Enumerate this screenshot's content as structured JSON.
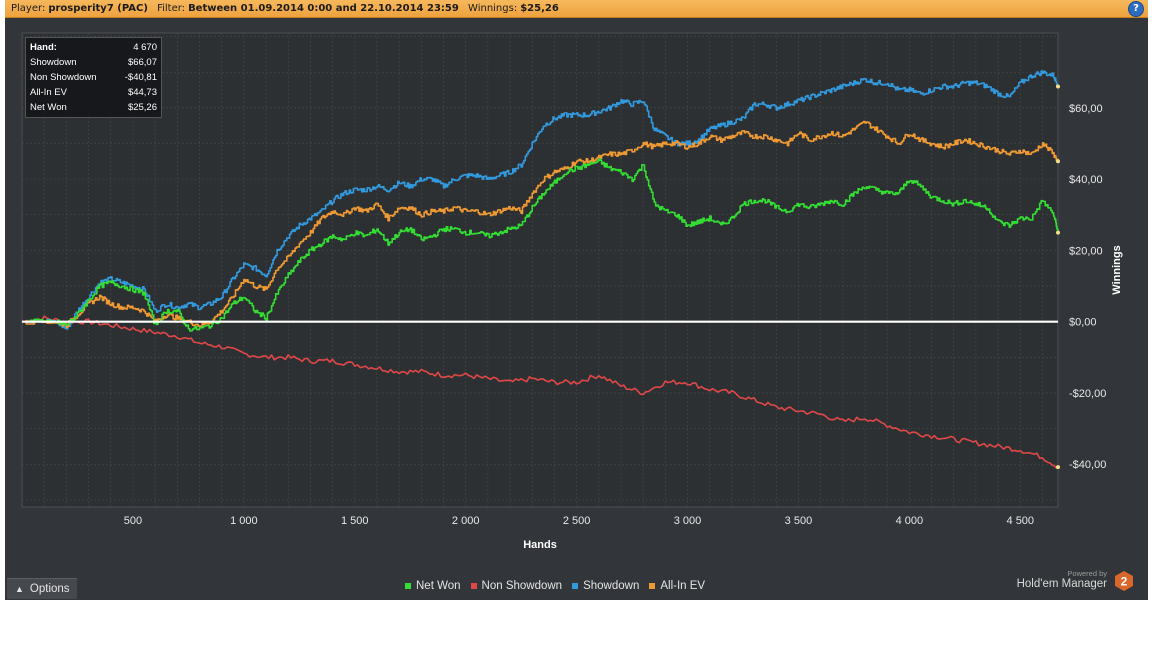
{
  "header": {
    "player_label": "Player:",
    "player_value": "prosperity7 (PAC)",
    "filter_label": "Filter:",
    "filter_value": "Between 01.09.2014 0:00 and 22.10.2014 23:59",
    "winnings_label": "Winnings:",
    "winnings_value": "$25,26",
    "help_icon": "?"
  },
  "stats": [
    {
      "key": "Hand:",
      "value": "4 670"
    },
    {
      "key": "Showdown",
      "value": "$66,07"
    },
    {
      "key": "Non Showdown",
      "value": "-$40,81"
    },
    {
      "key": "All-In EV",
      "value": "$44,73"
    },
    {
      "key": "Net Won",
      "value": "$25,26"
    }
  ],
  "footer": {
    "options_label": "Options",
    "powered_by": "Powered by",
    "brand_name": "Hold'em Manager",
    "brand_badge": "2"
  },
  "colors": {
    "net_won": "#33dd33",
    "non_showdown": "#e04848",
    "showdown": "#3399dd",
    "allin_ev": "#ee9933",
    "zero_line": "#ffffff",
    "background": "#323539",
    "grid": "#45484d"
  },
  "chart_data": {
    "type": "line",
    "xlabel": "Hands",
    "ylabel": "Winnings",
    "xlim": [
      0,
      4670
    ],
    "ylim": [
      -52,
      81
    ],
    "x_ticks": [
      500,
      1000,
      1500,
      2000,
      2500,
      3000,
      3500,
      4000,
      4500
    ],
    "x_tick_labels": [
      "500",
      "1 000",
      "1 500",
      "2 000",
      "2 500",
      "3 000",
      "3 500",
      "4 000",
      "4 500"
    ],
    "y_ticks": [
      60,
      40,
      20,
      0,
      -20,
      -40
    ],
    "y_tick_labels": [
      "$60,00",
      "$40,00",
      "$20,00",
      "$0,00",
      "-$20,00",
      "-$40,00"
    ],
    "grid": true,
    "legend_position": "bottom-center",
    "series": [
      {
        "name": "Net Won",
        "color_key": "net_won",
        "x": [
          0,
          150,
          200,
          250,
          300,
          350,
          400,
          450,
          500,
          550,
          600,
          650,
          700,
          750,
          800,
          850,
          900,
          950,
          1000,
          1050,
          1100,
          1150,
          1200,
          1250,
          1300,
          1350,
          1400,
          1450,
          1500,
          1550,
          1600,
          1650,
          1700,
          1750,
          1800,
          1850,
          1900,
          1950,
          2000,
          2050,
          2100,
          2150,
          2200,
          2250,
          2300,
          2350,
          2400,
          2450,
          2500,
          2550,
          2600,
          2650,
          2700,
          2750,
          2800,
          2850,
          2900,
          2950,
          3000,
          3050,
          3100,
          3150,
          3200,
          3250,
          3300,
          3350,
          3400,
          3450,
          3500,
          3550,
          3600,
          3650,
          3700,
          3750,
          3800,
          3850,
          3900,
          3950,
          4000,
          4050,
          4100,
          4150,
          4200,
          4250,
          4300,
          4350,
          4400,
          4450,
          4500,
          4550,
          4600,
          4650,
          4670
        ],
        "y": [
          0,
          0,
          -1,
          2,
          6,
          10,
          11,
          10,
          9,
          8,
          -1,
          3,
          3,
          -2,
          -2,
          -1,
          1,
          5,
          7,
          3,
          1,
          8,
          13,
          17,
          20,
          22,
          24,
          23,
          25,
          24,
          26,
          22,
          25,
          26,
          23,
          24,
          26,
          26,
          25,
          25,
          24,
          25,
          26,
          27,
          32,
          36,
          39,
          42,
          43,
          44,
          45,
          43,
          42,
          40,
          44,
          33,
          31,
          30,
          27,
          28,
          29,
          27,
          29,
          33,
          34,
          34,
          32,
          31,
          33,
          32,
          33,
          34,
          33,
          36,
          38,
          37,
          36,
          36,
          40,
          38,
          35,
          34,
          33,
          34,
          33,
          32,
          28,
          27,
          29,
          29,
          34,
          30,
          25
        ]
      },
      {
        "name": "Non Showdown",
        "color_key": "non_showdown",
        "x": [
          0,
          100,
          200,
          300,
          400,
          500,
          600,
          700,
          800,
          900,
          1000,
          1100,
          1200,
          1300,
          1400,
          1500,
          1600,
          1700,
          1800,
          1900,
          2000,
          2100,
          2200,
          2300,
          2400,
          2500,
          2600,
          2700,
          2800,
          2900,
          3000,
          3100,
          3200,
          3300,
          3400,
          3500,
          3600,
          3700,
          3800,
          3900,
          4000,
          4100,
          4200,
          4300,
          4400,
          4500,
          4600,
          4670
        ],
        "y": [
          0,
          1,
          0,
          0,
          -1,
          -2,
          -3,
          -4,
          -6,
          -7,
          -9,
          -10,
          -10,
          -11,
          -11,
          -12,
          -13,
          -14,
          -14,
          -15,
          -15,
          -16,
          -17,
          -16,
          -17,
          -17,
          -15,
          -18,
          -20,
          -17,
          -17,
          -19,
          -20,
          -22,
          -24,
          -25,
          -26,
          -28,
          -27,
          -29,
          -31,
          -32,
          -33,
          -34,
          -35,
          -36,
          -38,
          -40.81
        ]
      },
      {
        "name": "Showdown",
        "color_key": "showdown",
        "x": [
          0,
          150,
          200,
          250,
          300,
          350,
          400,
          450,
          500,
          550,
          600,
          650,
          700,
          750,
          800,
          850,
          900,
          950,
          1000,
          1050,
          1100,
          1150,
          1200,
          1250,
          1300,
          1350,
          1400,
          1450,
          1500,
          1550,
          1600,
          1650,
          1700,
          1750,
          1800,
          1850,
          1900,
          1950,
          2000,
          2050,
          2100,
          2150,
          2200,
          2250,
          2300,
          2350,
          2400,
          2450,
          2500,
          2550,
          2600,
          2650,
          2700,
          2750,
          2800,
          2850,
          2900,
          2950,
          3000,
          3050,
          3100,
          3150,
          3200,
          3250,
          3300,
          3350,
          3400,
          3450,
          3500,
          3550,
          3600,
          3650,
          3700,
          3750,
          3800,
          3850,
          3900,
          3950,
          4000,
          4050,
          4100,
          4150,
          4200,
          4250,
          4300,
          4350,
          4400,
          4450,
          4500,
          4550,
          4600,
          4650,
          4670
        ],
        "y": [
          0,
          0,
          -2,
          3,
          7,
          11,
          12,
          11,
          10,
          9,
          3,
          5,
          4,
          5,
          4,
          5,
          7,
          12,
          16,
          15,
          13,
          20,
          24,
          27,
          29,
          31,
          34,
          36,
          37,
          37,
          38,
          37,
          39,
          38,
          40,
          40,
          38,
          40,
          41,
          41,
          40,
          41,
          42,
          44,
          50,
          55,
          57,
          58,
          58,
          58,
          59,
          60,
          62,
          61,
          62,
          54,
          52,
          50,
          50,
          51,
          54,
          55,
          56,
          57,
          61,
          61,
          60,
          61,
          62,
          63,
          64,
          65,
          66,
          67,
          68,
          67,
          67,
          65,
          65,
          64,
          65,
          66,
          66,
          67,
          67,
          66,
          64,
          63,
          67,
          69,
          70,
          69,
          66
        ]
      },
      {
        "name": "All-In EV",
        "color_key": "allin_ev",
        "x": [
          0,
          150,
          200,
          250,
          300,
          350,
          400,
          450,
          500,
          550,
          600,
          650,
          700,
          750,
          800,
          850,
          900,
          950,
          1000,
          1050,
          1100,
          1150,
          1200,
          1250,
          1300,
          1350,
          1400,
          1450,
          1500,
          1550,
          1600,
          1650,
          1700,
          1750,
          1800,
          1850,
          1900,
          1950,
          2000,
          2050,
          2100,
          2150,
          2200,
          2250,
          2300,
          2350,
          2400,
          2450,
          2500,
          2550,
          2600,
          2650,
          2700,
          2750,
          2800,
          2850,
          2900,
          2950,
          3000,
          3050,
          3100,
          3150,
          3200,
          3250,
          3300,
          3350,
          3400,
          3450,
          3500,
          3550,
          3600,
          3650,
          3700,
          3750,
          3800,
          3850,
          3900,
          3950,
          4000,
          4050,
          4100,
          4150,
          4200,
          4250,
          4300,
          4350,
          4400,
          4450,
          4500,
          4550,
          4600,
          4650,
          4670
        ],
        "y": [
          0,
          0,
          -1,
          2,
          5,
          7,
          5,
          4,
          4,
          3,
          0,
          2,
          1,
          0,
          -1,
          0,
          3,
          7,
          12,
          10,
          9,
          15,
          18,
          22,
          25,
          29,
          31,
          30,
          32,
          31,
          33,
          29,
          32,
          32,
          30,
          31,
          31,
          32,
          31,
          31,
          30,
          31,
          32,
          31,
          36,
          40,
          42,
          43,
          45,
          45,
          46,
          47,
          47,
          48,
          50,
          49,
          50,
          50,
          49,
          50,
          52,
          51,
          52,
          53,
          52,
          52,
          51,
          50,
          53,
          51,
          52,
          53,
          52,
          54,
          56,
          54,
          52,
          50,
          53,
          51,
          50,
          49,
          50,
          51,
          50,
          49,
          48,
          47,
          48,
          47,
          50,
          47,
          45
        ]
      }
    ]
  }
}
